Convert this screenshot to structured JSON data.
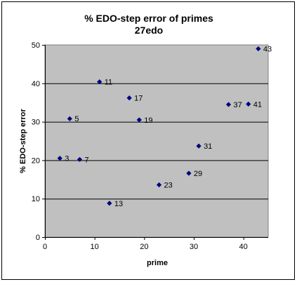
{
  "chart_data": {
    "type": "scatter",
    "title": "% EDO-step error of primes",
    "subtitle": "27edo",
    "xlabel": "prime",
    "ylabel": "% EDO-step error",
    "xlim": [
      0,
      45
    ],
    "ylim": [
      0,
      50
    ],
    "x_ticks": [
      "0",
      "10",
      "20",
      "30",
      "40"
    ],
    "y_ticks": [
      "0",
      "10",
      "20",
      "30",
      "40",
      "50"
    ],
    "grid": "horizontal major gridlines",
    "legend": "none",
    "plot_background": "#c0c0c0",
    "marker_color": "#000080",
    "marker": "diamond",
    "points": [
      {
        "x": 3,
        "y": 20.5,
        "label": "3"
      },
      {
        "x": 5,
        "y": 30.8,
        "label": "5"
      },
      {
        "x": 7,
        "y": 20.2,
        "label": "7"
      },
      {
        "x": 11,
        "y": 40.4,
        "label": "11"
      },
      {
        "x": 13,
        "y": 8.8,
        "label": "13"
      },
      {
        "x": 17,
        "y": 36.2,
        "label": "17"
      },
      {
        "x": 19,
        "y": 30.5,
        "label": "19"
      },
      {
        "x": 23,
        "y": 13.6,
        "label": "23"
      },
      {
        "x": 29,
        "y": 16.6,
        "label": "29"
      },
      {
        "x": 31,
        "y": 23.7,
        "label": "31"
      },
      {
        "x": 37,
        "y": 34.5,
        "label": "37"
      },
      {
        "x": 41,
        "y": 34.6,
        "label": "41"
      },
      {
        "x": 43,
        "y": 49.0,
        "label": "43"
      }
    ]
  }
}
